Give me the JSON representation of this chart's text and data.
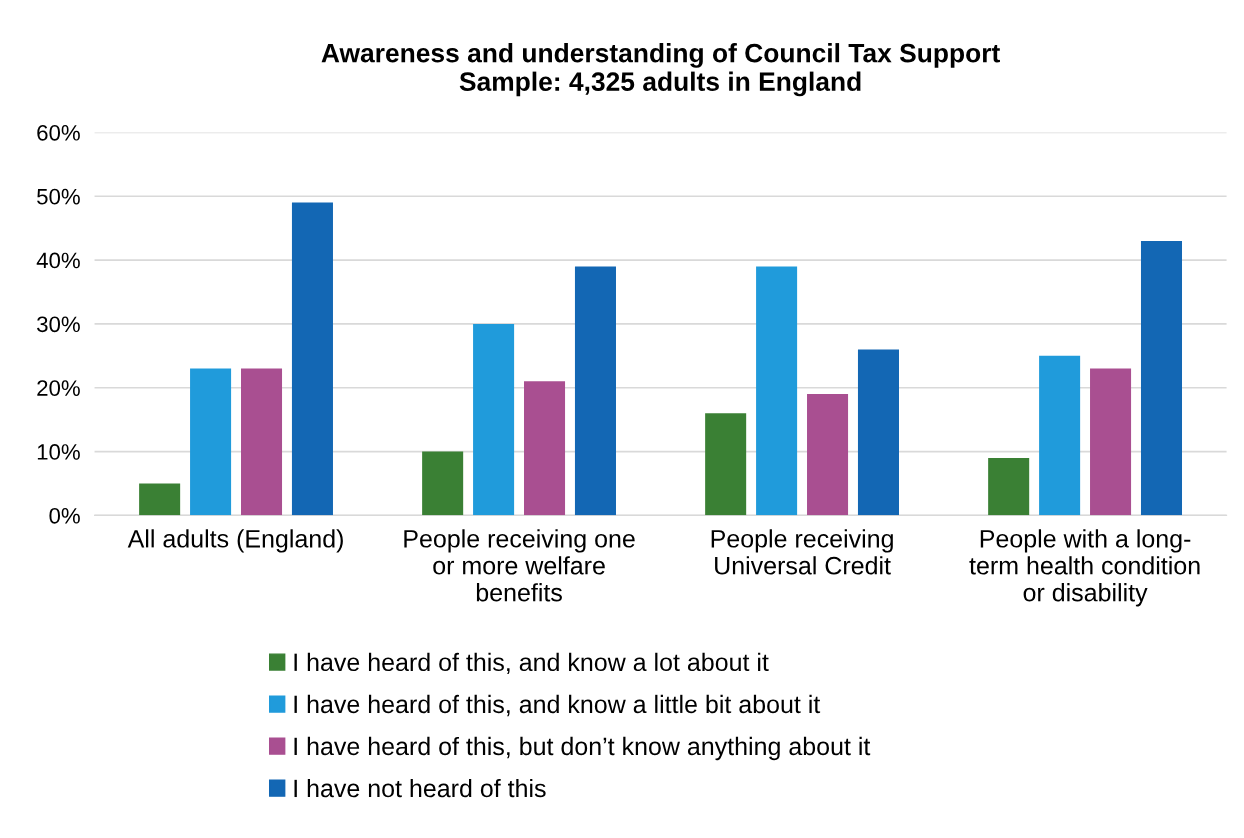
{
  "chart_data": {
    "type": "bar",
    "title": "Awareness and understanding of Council Tax Support\nSample: 4,325 adults in England",
    "categories": [
      "All adults (England)",
      "People receiving one\nor more welfare\nbenefits",
      "People receiving\nUniversal Credit",
      "People with a long-\nterm health condition\nor disability"
    ],
    "series": [
      {
        "name": "I have heard of this, and know a lot about it",
        "color": "#3a8034",
        "values": [
          5,
          10,
          16,
          9
        ]
      },
      {
        "name": "I have heard of this, and know a little bit about it",
        "color": "#209bdb",
        "values": [
          23,
          30,
          39,
          25
        ]
      },
      {
        "name": "I have heard of this, but don’t know anything about it",
        "color": "#a94f91",
        "values": [
          23,
          21,
          19,
          23
        ]
      },
      {
        "name": "I have not heard of this",
        "color": "#1367b4",
        "values": [
          49,
          39,
          26,
          43
        ]
      }
    ],
    "ylim": [
      0,
      60
    ],
    "yticks": [
      {
        "value": 0,
        "label": "0%"
      },
      {
        "value": 10,
        "label": "10%"
      },
      {
        "value": 20,
        "label": "20%"
      },
      {
        "value": 30,
        "label": "30%"
      },
      {
        "value": 40,
        "label": "40%"
      },
      {
        "value": 50,
        "label": "50%"
      },
      {
        "value": 60,
        "label": "60%"
      }
    ],
    "grid": "y",
    "legend": "bottom"
  }
}
